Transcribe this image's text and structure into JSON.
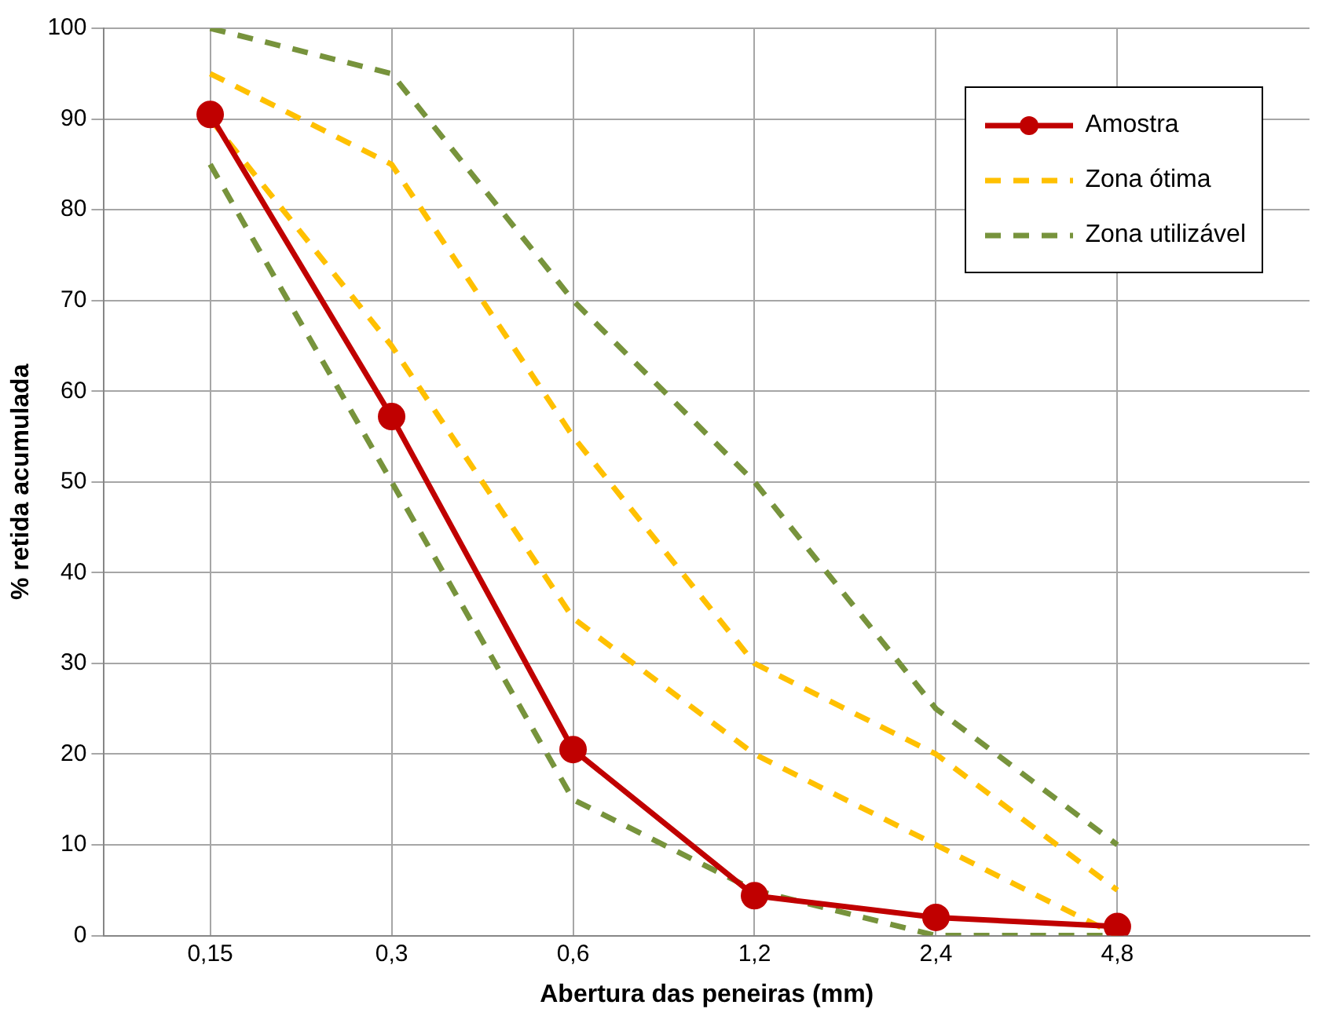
{
  "chart_data": {
    "type": "line",
    "xlabel": "Abertura das peneiras (mm)",
    "ylabel": "% retida acumulada",
    "log": "x",
    "x": [
      0.15,
      0.3,
      0.6,
      1.2,
      2.4,
      4.8
    ],
    "xlim": [
      0.1,
      10
    ],
    "xticks": [
      {
        "value": 0.15,
        "label": "0,15"
      },
      {
        "value": 0.3,
        "label": "0,3"
      },
      {
        "value": 0.6,
        "label": "0,6"
      },
      {
        "value": 1.2,
        "label": "1,2"
      },
      {
        "value": 2.4,
        "label": "2,4"
      },
      {
        "value": 4.8,
        "label": "4,8"
      }
    ],
    "ylim": [
      0,
      100
    ],
    "yticks": [
      0,
      10,
      20,
      30,
      40,
      50,
      60,
      70,
      80,
      90,
      100
    ],
    "grid": true,
    "legend": "top right",
    "series": [
      {
        "name": "Amostra",
        "color": "#c00000",
        "values": [
          90.5,
          57.2,
          20.5,
          4.4,
          2,
          1
        ],
        "marker": "circle",
        "line_style": "solid"
      },
      {
        "name": "Zona ótima",
        "color": "#ffc000",
        "values": [
          95,
          85,
          55,
          30,
          20,
          5
        ],
        "marker": "none",
        "line_style": "dashed"
      },
      {
        "color": "#ffc000",
        "values": [
          90,
          65,
          35,
          20,
          10,
          0
        ],
        "marker": "none",
        "line_style": "dashed"
      },
      {
        "name": "Zona utilizável",
        "color": "#77933c",
        "values": [
          100,
          95,
          70,
          50,
          25,
          10
        ],
        "marker": "none",
        "line_style": "dashed"
      },
      {
        "color": "#77933c",
        "values": [
          85,
          50,
          15,
          5,
          0,
          0
        ],
        "marker": "none",
        "line_style": "dashed"
      }
    ]
  }
}
